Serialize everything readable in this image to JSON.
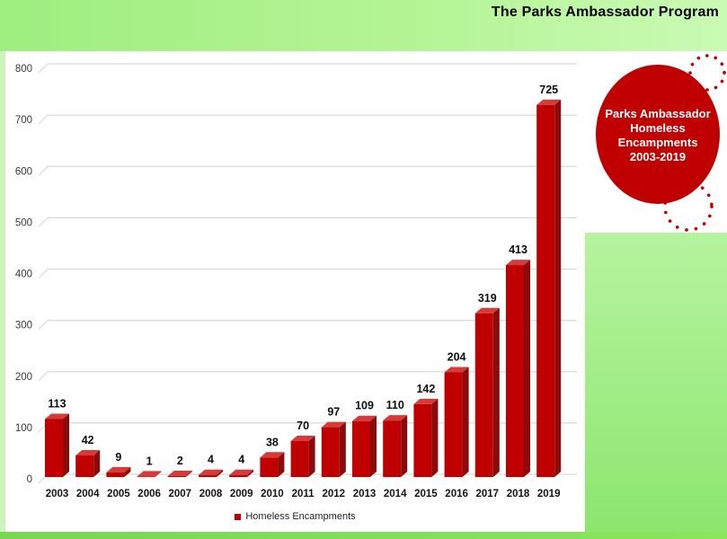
{
  "header": {
    "title": "The Parks Ambassador Program"
  },
  "badge": {
    "lines": [
      "Parks Ambassador",
      "Homeless",
      "Encampments",
      "2003-2019"
    ],
    "bg_color": "#c00000",
    "text_color": "#ffffff"
  },
  "chart_data": {
    "type": "bar",
    "categories": [
      "2003",
      "2004",
      "2005",
      "2006",
      "2007",
      "2008",
      "2009",
      "2010",
      "2011",
      "2012",
      "2013",
      "2014",
      "2015",
      "2016",
      "2017",
      "2018",
      "2019"
    ],
    "values": [
      113,
      42,
      9,
      1,
      2,
      4,
      4,
      38,
      70,
      97,
      109,
      110,
      142,
      204,
      319,
      413,
      725
    ],
    "series_name": "Homeless Encampments",
    "title": "",
    "xlabel": "",
    "ylabel": "",
    "ylim": [
      0,
      800
    ],
    "ytick_step": 100,
    "grid": true,
    "legend_position": "bottom",
    "style": "3d",
    "bar_color": "#c00000",
    "bar_side_color": "#8b0b0b",
    "bar_top_color": "#d83a3a",
    "grid_color": "#d9d9d9",
    "axis_text_color": "#3a3a3a",
    "label_text_color": "#0d0d0d"
  },
  "legend": {
    "label": "Homeless Encampments",
    "swatch_color": "#c00000"
  },
  "colors": {
    "header_green_left": "#9eee7f",
    "header_green_right": "#c9fbb4",
    "panel_green_top": "#b6f49f",
    "panel_green_bottom": "#8ce66e",
    "bottom_strip_green": "#7edd58",
    "accent_red": "#c00000",
    "chart_bg": "#ffffff"
  }
}
